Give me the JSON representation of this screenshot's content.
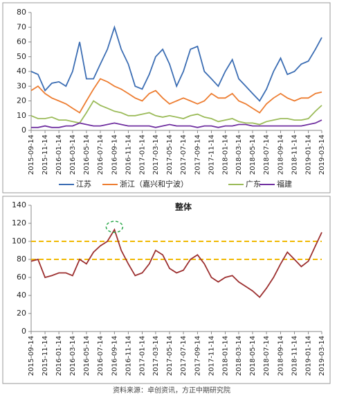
{
  "chart_data": [
    {
      "type": "line",
      "x": [
        "2015-09-14",
        "2015-10-14",
        "2015-11-14",
        "2015-12-14",
        "2016-01-14",
        "2016-02-14",
        "2016-03-14",
        "2016-04-14",
        "2016-05-14",
        "2016-06-14",
        "2016-07-14",
        "2016-08-14",
        "2016-09-14",
        "2016-10-14",
        "2016-11-14",
        "2016-12-14",
        "2017-01-14",
        "2017-02-14",
        "2017-03-14",
        "2017-04-14",
        "2017-05-14",
        "2017-06-14",
        "2017-07-14",
        "2017-08-14",
        "2017-09-14",
        "2017-10-14",
        "2017-11-14",
        "2017-12-14",
        "2018-01-14",
        "2018-02-14",
        "2018-03-14",
        "2018-04-14",
        "2018-05-14",
        "2018-06-14",
        "2018-07-14",
        "2018-08-14",
        "2018-09-14",
        "2018-10-14",
        "2018-11-14",
        "2018-12-14",
        "2019-01-14",
        "2019-02-14",
        "2019-03-14"
      ],
      "xlim": [
        "2015-09-14",
        "2019-03-14"
      ],
      "xticks": [
        "2015-09-14",
        "2015-11-14",
        "2016-01-14",
        "2016-03-14",
        "2016-05-14",
        "2016-07-14",
        "2016-09-14",
        "2016-11-14",
        "2017-01-14",
        "2017-03-14",
        "2017-05-14",
        "2017-07-14",
        "2017-09-14",
        "2017-11-14",
        "2018-01-14",
        "2018-03-14",
        "2018-05-14",
        "2018-07-14",
        "2018-09-14",
        "2018-11-14",
        "2019-01-14",
        "2019-03-14"
      ],
      "ylim": [
        0,
        80
      ],
      "yticks": [
        0,
        10,
        20,
        30,
        40,
        50,
        60,
        70,
        80
      ],
      "legend": "bottom",
      "series": [
        {
          "name": "江苏",
          "color": "#3b6db3",
          "values": [
            40,
            38,
            27,
            32,
            33,
            30,
            40,
            60,
            35,
            35,
            45,
            55,
            70,
            55,
            45,
            30,
            28,
            38,
            50,
            55,
            45,
            30,
            40,
            55,
            57,
            40,
            35,
            30,
            40,
            48,
            35,
            30,
            25,
            20,
            28,
            40,
            49,
            38,
            40,
            45,
            47,
            55,
            63
          ]
        },
        {
          "name": "浙江（嘉兴和宁波）",
          "color": "#ed7d31",
          "values": [
            27,
            30,
            25,
            22,
            20,
            18,
            15,
            12,
            20,
            28,
            35,
            33,
            30,
            28,
            25,
            22,
            20,
            25,
            27,
            22,
            18,
            20,
            22,
            20,
            18,
            20,
            25,
            22,
            22,
            25,
            20,
            18,
            15,
            12,
            18,
            22,
            25,
            22,
            20,
            22,
            22,
            25,
            26
          ]
        },
        {
          "name": "广东",
          "color": "#9bbb59",
          "values": [
            10,
            8,
            8,
            9,
            7,
            7,
            6,
            5,
            12,
            20,
            17,
            15,
            13,
            12,
            10,
            10,
            11,
            12,
            10,
            9,
            10,
            9,
            8,
            10,
            11,
            9,
            8,
            6,
            7,
            8,
            6,
            5,
            5,
            4,
            6,
            7,
            8,
            8,
            7,
            7,
            8,
            13,
            17
          ]
        },
        {
          "name": "福建",
          "color": "#7030a0",
          "values": [
            2,
            2,
            3,
            2,
            2,
            3,
            3,
            5,
            4,
            3,
            3,
            4,
            5,
            4,
            3,
            3,
            3,
            3,
            2,
            3,
            4,
            3,
            3,
            3,
            2,
            3,
            3,
            2,
            3,
            3,
            4,
            4,
            3,
            3,
            3,
            3,
            3,
            3,
            3,
            3,
            4,
            5,
            7
          ]
        }
      ]
    },
    {
      "type": "line",
      "title": "整体",
      "x": [
        "2015-09-14",
        "2015-10-14",
        "2015-11-14",
        "2015-12-14",
        "2016-01-14",
        "2016-02-14",
        "2016-03-14",
        "2016-04-14",
        "2016-05-14",
        "2016-06-14",
        "2016-07-14",
        "2016-08-14",
        "2016-09-14",
        "2016-10-14",
        "2016-11-14",
        "2016-12-14",
        "2017-01-14",
        "2017-02-14",
        "2017-03-14",
        "2017-04-14",
        "2017-05-14",
        "2017-06-14",
        "2017-07-14",
        "2017-08-14",
        "2017-09-14",
        "2017-10-14",
        "2017-11-14",
        "2017-12-14",
        "2018-01-14",
        "2018-02-14",
        "2018-03-14",
        "2018-04-14",
        "2018-05-14",
        "2018-06-14",
        "2018-07-14",
        "2018-08-14",
        "2018-09-14",
        "2018-10-14",
        "2018-11-14",
        "2018-12-14",
        "2019-01-14",
        "2019-02-14",
        "2019-03-14"
      ],
      "xlim": [
        "2015-09-14",
        "2019-03-14"
      ],
      "xticks": [
        "2015-09-14",
        "2015-11-14",
        "2016-01-14",
        "2016-03-14",
        "2016-05-14",
        "2016-07-14",
        "2016-09-14",
        "2016-11-14",
        "2017-01-14",
        "2017-03-14",
        "2017-05-14",
        "2017-07-14",
        "2017-09-14",
        "2017-11-14",
        "2018-01-14",
        "2018-03-14",
        "2018-05-14",
        "2018-07-14",
        "2018-09-14",
        "2018-11-14",
        "2019-01-14",
        "2019-03-14"
      ],
      "ylim": [
        0,
        140
      ],
      "yticks": [
        0,
        20,
        40,
        60,
        80,
        100,
        120,
        140
      ],
      "reference_lines": [
        100,
        80
      ],
      "reference_color": "#f0b800",
      "series": [
        {
          "color": "#9c2f2f",
          "values": [
            78,
            80,
            60,
            62,
            65,
            65,
            62,
            80,
            75,
            88,
            95,
            100,
            113,
            90,
            75,
            62,
            65,
            75,
            90,
            85,
            70,
            65,
            68,
            80,
            85,
            75,
            60,
            55,
            60,
            62,
            55,
            50,
            45,
            38,
            48,
            60,
            75,
            88,
            80,
            72,
            78,
            95,
            110
          ]
        }
      ]
    }
  ],
  "source": "资料来源：卓创资讯，方正中期研究院"
}
